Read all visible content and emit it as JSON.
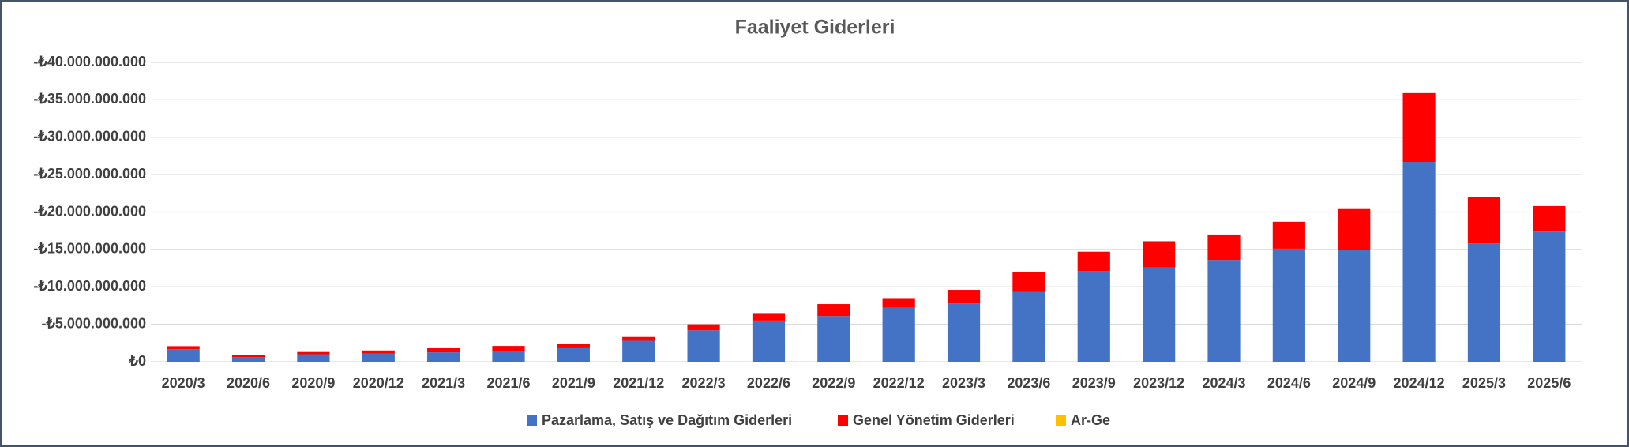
{
  "chart_data": {
    "type": "bar",
    "stacked": true,
    "title": "Faaliyet Giderleri",
    "categories": [
      "2020/3",
      "2020/6",
      "2020/9",
      "2020/12",
      "2021/3",
      "2021/6",
      "2021/9",
      "2021/12",
      "2022/3",
      "2022/6",
      "2022/9",
      "2022/12",
      "2023/3",
      "2023/6",
      "2023/9",
      "2023/12",
      "2024/3",
      "2024/6",
      "2024/9",
      "2024/12",
      "2025/3",
      "2025/6"
    ],
    "series": [
      {
        "name": "Pazarlama, Satış ve Dağıtım Giderleri",
        "color": "#4472c4",
        "values": [
          -1670000000,
          -600000000,
          -1000000000,
          -1100000000,
          -1250000000,
          -1400000000,
          -1800000000,
          -2800000000,
          -4200000000,
          -5500000000,
          -6100000000,
          -7200000000,
          -7800000000,
          -9300000000,
          -12100000000,
          -12600000000,
          -13600000000,
          -15100000000,
          -14900000000,
          -26700000000,
          -15800000000,
          -17400000000
        ]
      },
      {
        "name": "Genel Yönetim Giderleri",
        "color": "#ff0000",
        "values": [
          -400000000,
          -250000000,
          -300000000,
          -400000000,
          -550000000,
          -700000000,
          -600000000,
          -500000000,
          -800000000,
          -1000000000,
          -1600000000,
          -1300000000,
          -1800000000,
          -2700000000,
          -2600000000,
          -3500000000,
          -3400000000,
          -3600000000,
          -5500000000,
          -9200000000,
          -6200000000,
          -3400000000
        ]
      },
      {
        "name": "Ar-Ge",
        "color": "#ffc000",
        "values": [
          0,
          0,
          0,
          0,
          0,
          0,
          0,
          0,
          0,
          0,
          0,
          0,
          0,
          0,
          0,
          0,
          0,
          0,
          0,
          0,
          0,
          0
        ]
      }
    ],
    "ylim": [
      0,
      -40000000000
    ],
    "yticks": [
      {
        "value": 0,
        "label": "₺0"
      },
      {
        "value": -5000000000,
        "label": "-₺5.000.000.000"
      },
      {
        "value": -10000000000,
        "label": "-₺10.000.000.000"
      },
      {
        "value": -15000000000,
        "label": "-₺15.000.000.000"
      },
      {
        "value": -20000000000,
        "label": "-₺20.000.000.000"
      },
      {
        "value": -25000000000,
        "label": "-₺25.000.000.000"
      },
      {
        "value": -30000000000,
        "label": "-₺30.000.000.000"
      },
      {
        "value": -35000000000,
        "label": "-₺35.000.000.000"
      },
      {
        "value": -40000000000,
        "label": "-₺40.000.000.000"
      }
    ],
    "grid": true,
    "legend": "bottom"
  }
}
